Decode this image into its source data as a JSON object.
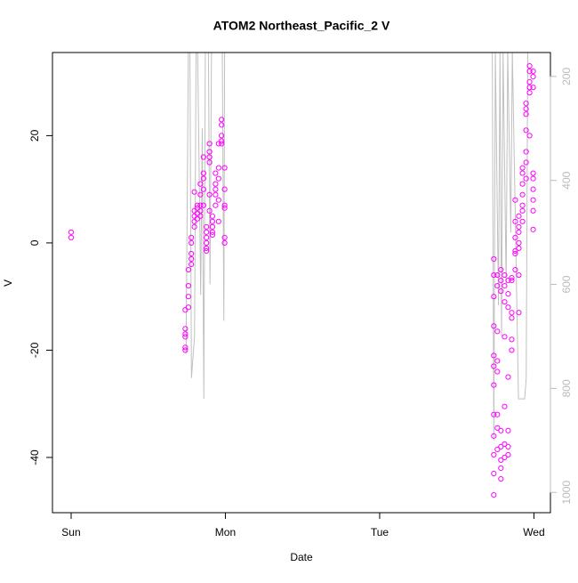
{
  "chart_data": {
    "type": "scatter",
    "title": "ATOM2 Northeast_Pacific_2 V",
    "xlabel": "Date",
    "ylabel": "V",
    "xlim": [
      -0.121,
      3.107
    ],
    "xticks": [
      {
        "value": 0,
        "label": "Sun"
      },
      {
        "value": 1,
        "label": "Mon"
      },
      {
        "value": 2,
        "label": "Tue"
      },
      {
        "value": 3,
        "label": "Wed"
      }
    ],
    "ylim": [
      -50.3,
      35.5
    ],
    "yticks": [
      -40,
      -20,
      0,
      20
    ],
    "y2lim": [
      1039,
      154
    ],
    "y2ticks": [
      200,
      400,
      600,
      800,
      1000
    ],
    "series": [
      {
        "color": "#ff00ff",
        "x": [
          0,
          0,
          0.74,
          0.74,
          0.74,
          0.74,
          0.74,
          0.74,
          0.76,
          0.76,
          0.76,
          0.76,
          0.779,
          0.779,
          0.779,
          0.779,
          0.779,
          0.799,
          0.799,
          0.799,
          0.799,
          0.799,
          0.818,
          0.818,
          0.818,
          0.818,
          0.838,
          0.838,
          0.838,
          0.838,
          0.838,
          0.858,
          0.858,
          0.858,
          0.858,
          0.858,
          0.877,
          0.877,
          0.877,
          0.877,
          0.877,
          0.877,
          0.897,
          0.897,
          0.897,
          0.897,
          0.897,
          0.897,
          0.916,
          0.916,
          0.916,
          0.916,
          0.916,
          0.936,
          0.936,
          0.936,
          0.936,
          0.936,
          0.956,
          0.956,
          0.956,
          0.956,
          0.956,
          0.975,
          0.975,
          0.975,
          0.975,
          0.975,
          0.995,
          0.995,
          0.995,
          0.995,
          0.995,
          0.995,
          2.74,
          2.74,
          2.74,
          2.74,
          2.74,
          2.74,
          2.74,
          2.74,
          2.74,
          2.74,
          2.74,
          2.74,
          2.763,
          2.763,
          2.763,
          2.763,
          2.763,
          2.763,
          2.763,
          2.763,
          2.786,
          2.786,
          2.786,
          2.786,
          2.786,
          2.786,
          2.786,
          2.786,
          2.81,
          2.81,
          2.81,
          2.81,
          2.81,
          2.81,
          2.81,
          2.833,
          2.833,
          2.833,
          2.833,
          2.833,
          2.833,
          2.833,
          2.856,
          2.856,
          2.856,
          2.856,
          2.856,
          2.856,
          2.879,
          2.879,
          2.879,
          2.879,
          2.879,
          2.879,
          2.902,
          2.902,
          2.902,
          2.902,
          2.902,
          2.902,
          2.902,
          2.926,
          2.926,
          2.926,
          2.926,
          2.926,
          2.926,
          2.926,
          2.949,
          2.949,
          2.949,
          2.949,
          2.949,
          2.949,
          2.949,
          2.972,
          2.972,
          2.972,
          2.972,
          2.972,
          2.972,
          2.995,
          2.995,
          2.995,
          2.995,
          2.995,
          2.995,
          2.995,
          2.995,
          2.995
        ],
        "values": [
          2,
          1,
          -12.5,
          -16,
          -17,
          -17.5,
          -19.5,
          -20,
          -8,
          -5,
          -12,
          -10,
          -3,
          -2,
          0,
          1,
          -4,
          5,
          6,
          9.5,
          4,
          3,
          7,
          5.5,
          6.5,
          4.5,
          7,
          9,
          11,
          5,
          6,
          10,
          12,
          16,
          13,
          7,
          2,
          3,
          1,
          0,
          -1,
          -1.5,
          15,
          17,
          18.5,
          16,
          9,
          6,
          2,
          4,
          1.5,
          5,
          3,
          11,
          9,
          13,
          7,
          10,
          14,
          12,
          18.5,
          8,
          4,
          19,
          18.5,
          20,
          23,
          22,
          10,
          7,
          6.5,
          0,
          1,
          14,
          -3,
          -6,
          -10,
          -15.5,
          -21,
          -23,
          -26.5,
          -32,
          -36,
          -39.5,
          -43,
          -47,
          -6,
          -8,
          -16.5,
          -22,
          -24,
          -32,
          -34.5,
          -38.5,
          -5,
          -7,
          -9,
          -35,
          -38,
          -40.5,
          -42,
          -44,
          -11,
          -8,
          -6,
          -17.5,
          -40,
          -37.5,
          -30.5,
          -7,
          -9.5,
          -12,
          -25,
          -35,
          -38,
          -39.5,
          -7,
          -6.5,
          -20,
          -18,
          -14,
          -13,
          -5,
          -2,
          4,
          1,
          -1.5,
          8,
          3,
          5,
          2,
          -1,
          0,
          -13,
          -6,
          13,
          14,
          11,
          9,
          6,
          4,
          7,
          24,
          25,
          26,
          21,
          17,
          15,
          12,
          30,
          32,
          28,
          33,
          29,
          20,
          32,
          31,
          29,
          13,
          12,
          10,
          8,
          6,
          2.5
        ]
      },
      {
        "color": "#c0c0c0",
        "axis": "y2",
        "x": [
          0.745,
          0.76,
          0.77,
          0.78,
          0.8,
          0.81,
          0.82,
          0.84,
          0.85,
          0.86,
          0.87,
          0.89,
          0.9,
          0.91,
          0.98,
          0.99,
          0.995,
          1.5,
          2.7,
          2.73,
          2.74,
          2.75,
          2.77,
          2.78,
          2.79,
          2.8,
          2.82,
          2.83,
          2.85,
          2.86,
          2.9,
          2.94,
          2.95,
          2.96,
          3.0
        ],
        "values": [
          733,
          150,
          150,
          780,
          700,
          150,
          150,
          620,
          300,
          820,
          150,
          150,
          600,
          150,
          150,
          670,
          150,
          null,
          150,
          150,
          900,
          150,
          640,
          150,
          700,
          150,
          600,
          150,
          500,
          150,
          820,
          820,
          780,
          150,
          150
        ]
      }
    ]
  }
}
